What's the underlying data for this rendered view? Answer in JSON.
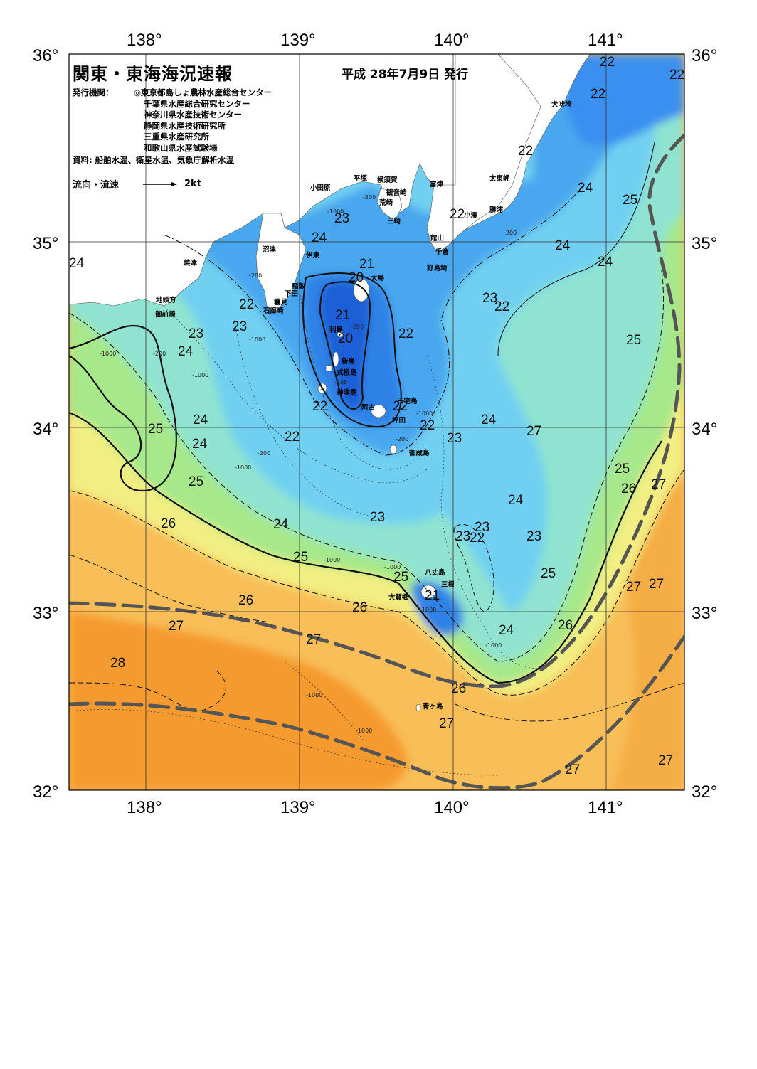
{
  "map": {
    "title": "関東・東海海況速報",
    "issue_date": "平成 28年7月9日 発行",
    "issuer_label": "発行機関：",
    "issuers": [
      "◎東京都島しょ農林水産総合センター",
      "千葉県水産総合研究センター",
      "神奈川県水産技術センター",
      "静岡県水産技術研究所",
      "三重県水産研究所",
      "和歌山県水産試験場"
    ],
    "sources": "資料: 船舶水温、衛星水温、気象庁解析水温",
    "legend": {
      "label": "流向・流速",
      "speed": "2kt"
    },
    "lon_labels": [
      "138°",
      "139°",
      "140°",
      "141°"
    ],
    "lat_labels": [
      "36°",
      "35°",
      "34°",
      "33°",
      "32°"
    ],
    "temperature_labels": [
      "22",
      "22",
      "22",
      "22",
      "24",
      "25",
      "24",
      "24",
      "24",
      "25",
      "22",
      "22",
      "23",
      "23",
      "22",
      "21",
      "20",
      "21",
      "20",
      "22",
      "22",
      "22",
      "23",
      "24",
      "23",
      "24",
      "22",
      "23",
      "25",
      "24",
      "23",
      "23",
      "24",
      "25",
      "25",
      "26",
      "27",
      "26",
      "24",
      "24",
      "23",
      "23",
      "22",
      "25",
      "26",
      "26",
      "25",
      "27",
      "27",
      "27",
      "21",
      "24",
      "26",
      "27",
      "28",
      "27",
      "26",
      "27",
      "27",
      "27",
      "24",
      "22",
      "25"
    ],
    "place_names": [
      "犬吠埼",
      "太東岬",
      "勝浦",
      "小湊",
      "館山",
      "千倉",
      "野島埼",
      "富津",
      "観音崎",
      "横須賀",
      "平塚",
      "小田原",
      "荒崎",
      "三崎",
      "沼津",
      "伊東",
      "焼津",
      "稲取",
      "下田",
      "雲見",
      "石廊崎",
      "地頭方",
      "御前崎",
      "大島",
      "利島",
      "新島",
      "式根島",
      "神津島",
      "三宅島",
      "阿古",
      "坪田",
      "御蔵島",
      "八丈島",
      "三根",
      "大賀郷",
      "青ヶ島"
    ],
    "depth_labels": [
      "-200",
      "-200",
      "-200",
      "-200",
      "-200",
      "-200",
      "-1000",
      "-1000",
      "-1000",
      "-1000",
      "-1000",
      "-1000",
      "-1000",
      "-1000",
      "-1000",
      "-1000",
      "-1000",
      "-1000",
      "-200",
      "-200"
    ],
    "color_scale": {
      "t20": "#1a5fd6",
      "t21": "#2f82e6",
      "t22": "#4aa7ef",
      "t23": "#71d0f1",
      "t24": "#8fe3d0",
      "t25": "#a6e88a",
      "t26": "#f2ee82",
      "t27": "#f8be58",
      "t28": "#f59a2e",
      "land": "#ffffff"
    }
  }
}
